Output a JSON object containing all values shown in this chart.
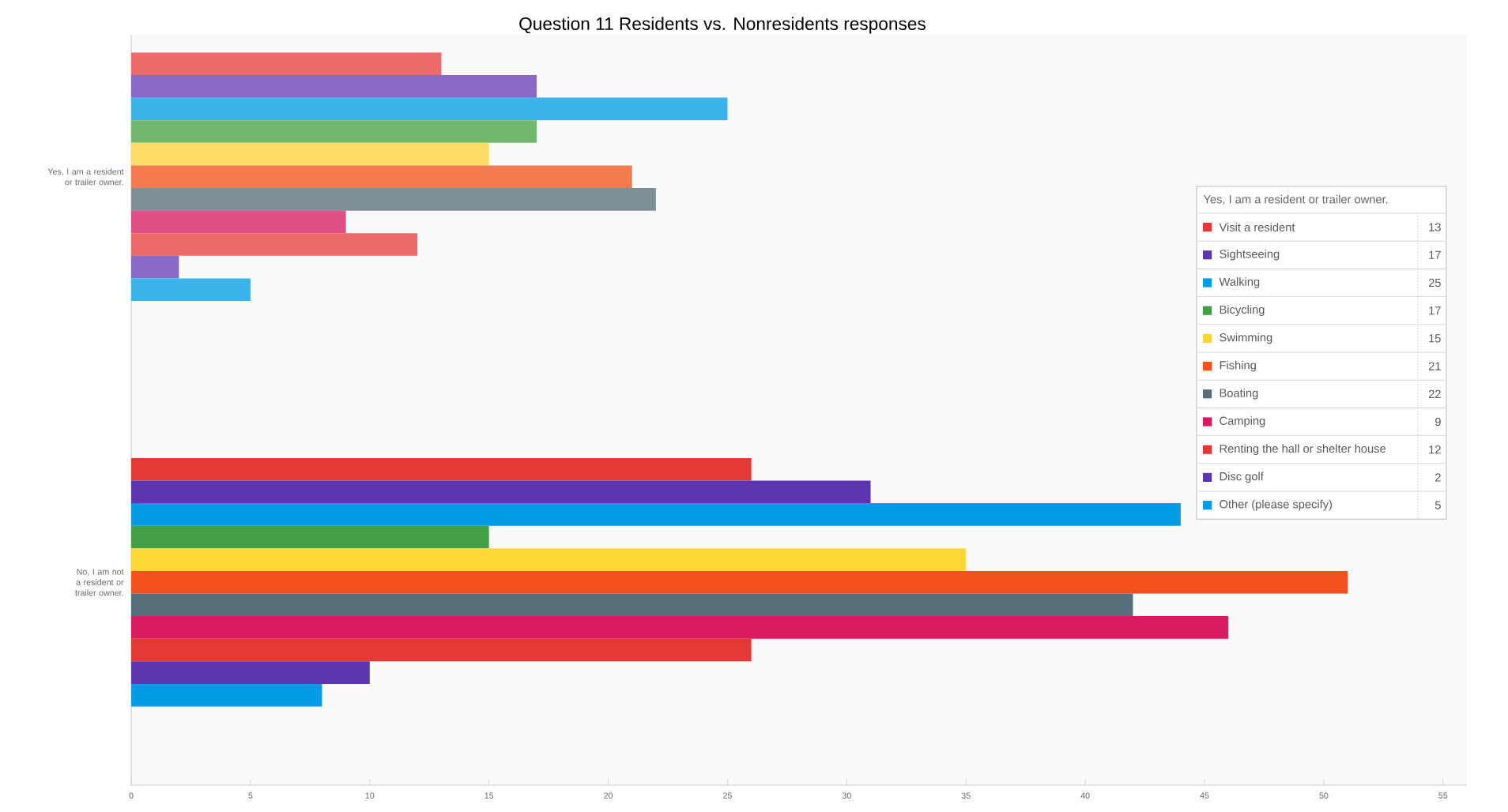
{
  "chart_data": {
    "type": "bar",
    "orientation": "horizontal",
    "title": "Question 11 Residents vs. Nonresidents responses",
    "categories": [
      "Yes, I am a resident or trailer owner.",
      "No, I am not a resident or trailer owner."
    ],
    "xlim": [
      0,
      56
    ],
    "xticks": [
      0,
      5,
      10,
      15,
      20,
      25,
      30,
      35,
      40,
      45,
      50,
      55
    ],
    "legend": "right",
    "legend_title": "Yes, I am a resident or trailer owner.",
    "annotations": [
      "13",
      "17",
      "25",
      "17",
      "15",
      "21",
      "22",
      "9",
      "12",
      "2",
      "5"
    ],
    "series": [
      {
        "name": "Visit a resident",
        "colors": [
          "#ec6a6a",
          "#e53935"
        ],
        "values": [
          13,
          26
        ]
      },
      {
        "name": "Sightseeing",
        "colors": [
          "#8869c5",
          "#5e35b1"
        ],
        "values": [
          17,
          31
        ]
      },
      {
        "name": "Walking",
        "colors": [
          "#3db3ec",
          "#039be5"
        ],
        "values": [
          25,
          44
        ]
      },
      {
        "name": "Bicycling",
        "colors": [
          "#70b870",
          "#43a047"
        ],
        "values": [
          17,
          15
        ]
      },
      {
        "name": "Swimming",
        "colors": [
          "#fddd66",
          "#fdd835"
        ],
        "values": [
          15,
          35
        ]
      },
      {
        "name": "Fishing",
        "colors": [
          "#f47a50",
          "#f4511e"
        ],
        "values": [
          21,
          51
        ]
      },
      {
        "name": "Boating",
        "colors": [
          "#7e8f98",
          "#546e7a"
        ],
        "values": [
          22,
          42
        ]
      },
      {
        "name": "Camping",
        "colors": [
          "#e05085",
          "#d81b60"
        ],
        "values": [
          9,
          46
        ]
      },
      {
        "name": "Renting the hall or shelter house",
        "colors": [
          "#ec6a6a",
          "#e53935"
        ],
        "values": [
          12,
          26
        ]
      },
      {
        "name": "Disc golf",
        "colors": [
          "#8869c5",
          "#5e35b1"
        ],
        "values": [
          2,
          10
        ]
      },
      {
        "name": "Other (please specify)",
        "colors": [
          "#3db3ec",
          "#039be5"
        ],
        "values": [
          5,
          8
        ]
      }
    ]
  }
}
